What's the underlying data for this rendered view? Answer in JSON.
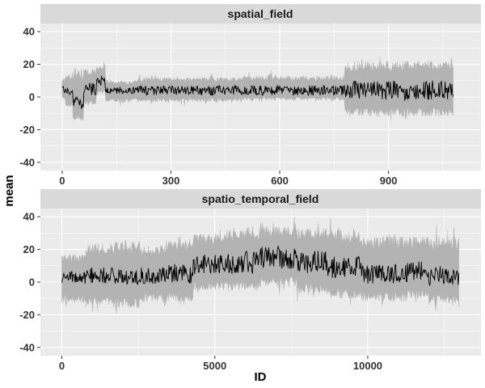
{
  "chart_data": {
    "type": "line",
    "xlabel": "ID",
    "ylabel": "mean",
    "colors": {
      "panel": "#ebebeb",
      "strip": "#d9d9d9",
      "ribbon": "#b3b3b3",
      "line": "#000000",
      "grid": "#ffffff"
    },
    "panels": [
      {
        "name": "spatial_field",
        "xlim": [
          -60,
          1155
        ],
        "ylim": [
          -45,
          45
        ],
        "xticks": [
          0,
          300,
          600,
          900
        ],
        "yticks": [
          -40,
          -20,
          0,
          20,
          40
        ],
        "segments": [
          {
            "x0": 0,
            "x1": 10,
            "mean": 5,
            "low": -2,
            "high": 12,
            "amp": 3
          },
          {
            "x0": 10,
            "x1": 30,
            "mean": 3,
            "low": -6,
            "high": 14,
            "amp": 3
          },
          {
            "x0": 30,
            "x1": 60,
            "mean": -3,
            "low": -15,
            "high": 18,
            "amp": 4
          },
          {
            "x0": 60,
            "x1": 95,
            "mean": 5,
            "low": -5,
            "high": 18,
            "amp": 4
          },
          {
            "x0": 95,
            "x1": 120,
            "mean": 10,
            "low": 2,
            "high": 20,
            "amp": 3
          },
          {
            "x0": 120,
            "x1": 200,
            "mean": 4,
            "low": -3,
            "high": 10,
            "amp": 2
          },
          {
            "x0": 200,
            "x1": 500,
            "mean": 4,
            "low": -3,
            "high": 12,
            "amp": 3
          },
          {
            "x0": 500,
            "x1": 780,
            "mean": 4,
            "low": -2,
            "high": 13,
            "amp": 3
          },
          {
            "x0": 780,
            "x1": 1080,
            "mean": 4,
            "low": -12,
            "high": 22,
            "amp": 6
          }
        ]
      },
      {
        "name": "spatio_temporal_field",
        "xlim": [
          -700,
          13700
        ],
        "ylim": [
          -45,
          45
        ],
        "xticks": [
          0,
          5000,
          10000
        ],
        "yticks": [
          -40,
          -20,
          0,
          20,
          40
        ],
        "segments": [
          {
            "x0": 0,
            "x1": 800,
            "mean": 3,
            "low": -13,
            "high": 17,
            "amp": 4
          },
          {
            "x0": 800,
            "x1": 1700,
            "mean": 4,
            "low": -14,
            "high": 24,
            "amp": 5
          },
          {
            "x0": 1700,
            "x1": 2600,
            "mean": 3,
            "low": -16,
            "high": 25,
            "amp": 5
          },
          {
            "x0": 2600,
            "x1": 3400,
            "mean": 4,
            "low": -12,
            "high": 22,
            "amp": 5
          },
          {
            "x0": 3400,
            "x1": 4300,
            "mean": 5,
            "low": -12,
            "high": 26,
            "amp": 6
          },
          {
            "x0": 4300,
            "x1": 5400,
            "mean": 11,
            "low": -5,
            "high": 30,
            "amp": 6
          },
          {
            "x0": 5400,
            "x1": 6500,
            "mean": 12,
            "low": -5,
            "high": 32,
            "amp": 7
          },
          {
            "x0": 6500,
            "x1": 7700,
            "mean": 15,
            "low": -3,
            "high": 34,
            "amp": 7
          },
          {
            "x0": 7700,
            "x1": 8700,
            "mean": 12,
            "low": -8,
            "high": 33,
            "amp": 7
          },
          {
            "x0": 8700,
            "x1": 9800,
            "mean": 9,
            "low": -10,
            "high": 32,
            "amp": 7
          },
          {
            "x0": 9800,
            "x1": 11300,
            "mean": 5,
            "low": -12,
            "high": 28,
            "amp": 6
          },
          {
            "x0": 11300,
            "x1": 12000,
            "mean": 7,
            "low": -10,
            "high": 28,
            "amp": 6
          },
          {
            "x0": 12000,
            "x1": 13000,
            "mean": 4,
            "low": -14,
            "high": 28,
            "amp": 6
          }
        ]
      }
    ]
  }
}
